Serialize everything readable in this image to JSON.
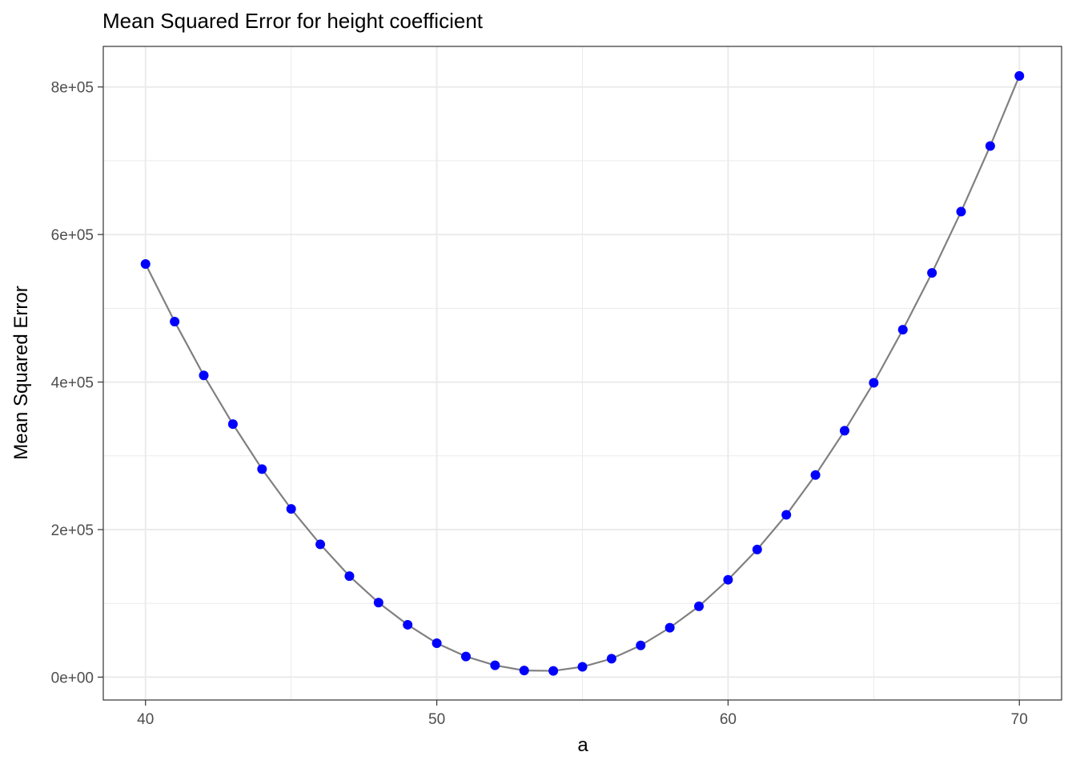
{
  "chart_data": {
    "type": "line",
    "title": "Mean Squared Error for height coefficient",
    "xlabel": "a",
    "ylabel": "Mean Squared Error",
    "xlim": [
      38.55,
      71.45
    ],
    "ylim": [
      -31000,
      855000
    ],
    "x_ticks": [
      40,
      50,
      60,
      70
    ],
    "x_tick_labels": [
      "40",
      "50",
      "60",
      "70"
    ],
    "x_minor_ticks": [
      45,
      55,
      65
    ],
    "y_ticks": [
      0,
      200000,
      400000,
      600000,
      800000
    ],
    "y_tick_labels": [
      "0e+00",
      "2e+05",
      "4e+05",
      "6e+05",
      "8e+05"
    ],
    "y_minor_ticks": [
      100000,
      300000,
      500000,
      700000
    ],
    "grid": true,
    "line_color": "#808080",
    "point_color": "#0000ff",
    "x": [
      40,
      41,
      42,
      43,
      44,
      45,
      46,
      47,
      48,
      49,
      50,
      51,
      52,
      53,
      54,
      55,
      56,
      57,
      58,
      59,
      60,
      61,
      62,
      63,
      64,
      65,
      66,
      67,
      68,
      69,
      70
    ],
    "y": [
      560000,
      482000,
      409000,
      343000,
      282000,
      228000,
      180000,
      137000,
      101000,
      71000,
      46000,
      28000,
      16000,
      9000,
      8500,
      14000,
      25000,
      43000,
      67000,
      96000,
      132000,
      173000,
      220000,
      274000,
      334000,
      399000,
      471000,
      548000,
      631000,
      720000,
      815000
    ]
  }
}
